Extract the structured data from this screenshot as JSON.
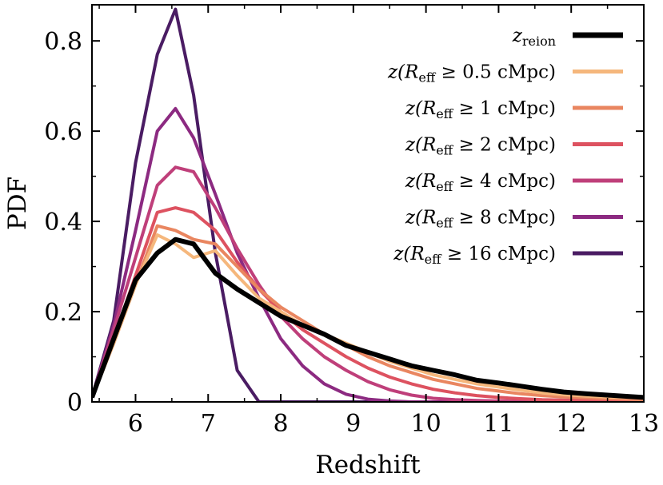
{
  "chart_data": {
    "type": "line",
    "xlabel": "Redshift",
    "ylabel": "PDF",
    "xlim": [
      5.4,
      13
    ],
    "ylim": [
      0,
      0.88
    ],
    "x_ticks": [
      6,
      7,
      8,
      9,
      10,
      11,
      12,
      13
    ],
    "x_tick_labels": [
      "6",
      "7",
      "8",
      "9",
      "10",
      "11",
      "12",
      "13"
    ],
    "y_ticks": [
      0,
      0.2,
      0.4,
      0.6,
      0.8
    ],
    "y_tick_labels": [
      "0",
      "0.2",
      "0.4",
      "0.6",
      "0.8"
    ],
    "grid": false,
    "legend_position": "top-right",
    "series": [
      {
        "name": "z_reion",
        "legend": {
          "pre": "z",
          "sub": "reion",
          "post": ""
        },
        "color": "#000000",
        "width": 6,
        "x": [
          5.4,
          5.7,
          6.0,
          6.3,
          6.55,
          6.8,
          7.1,
          7.4,
          7.7,
          8.0,
          8.3,
          8.6,
          8.9,
          9.2,
          9.5,
          9.8,
          10.1,
          10.4,
          10.7,
          11.0,
          11.3,
          11.6,
          11.9,
          12.2,
          12.5,
          12.8,
          13.0
        ],
        "y": [
          0.01,
          0.14,
          0.27,
          0.33,
          0.36,
          0.35,
          0.285,
          0.25,
          0.22,
          0.19,
          0.17,
          0.15,
          0.125,
          0.11,
          0.095,
          0.08,
          0.07,
          0.06,
          0.048,
          0.042,
          0.035,
          0.028,
          0.022,
          0.018,
          0.015,
          0.012,
          0.01
        ]
      },
      {
        "name": "z(R_eff ≥ 0.5 cMpc)",
        "legend": {
          "pre": "z(R",
          "sub": "eff",
          "post": " ≥ 0.5 cMpc)"
        },
        "color": "#f5b77c",
        "width": 4,
        "x": [
          5.4,
          5.7,
          6.0,
          6.3,
          6.55,
          6.8,
          7.1,
          7.4,
          7.7,
          8.0,
          8.3,
          8.6,
          8.9,
          9.2,
          9.5,
          9.8,
          10.1,
          10.4,
          10.7,
          11.0,
          11.3,
          11.6,
          11.9,
          12.2,
          12.5,
          12.8,
          13.0
        ],
        "y": [
          0.01,
          0.13,
          0.26,
          0.37,
          0.35,
          0.32,
          0.335,
          0.28,
          0.23,
          0.2,
          0.17,
          0.15,
          0.13,
          0.11,
          0.09,
          0.075,
          0.06,
          0.05,
          0.04,
          0.033,
          0.026,
          0.02,
          0.016,
          0.013,
          0.011,
          0.01,
          0.009
        ]
      },
      {
        "name": "z(R_eff ≥ 1 cMpc)",
        "legend": {
          "pre": "z(R",
          "sub": "eff",
          "post": " ≥ 1 cMpc)"
        },
        "color": "#e98660",
        "width": 4,
        "x": [
          5.4,
          5.7,
          6.0,
          6.3,
          6.55,
          6.8,
          7.1,
          7.4,
          7.7,
          8.0,
          8.3,
          8.6,
          8.9,
          9.2,
          9.5,
          9.8,
          10.1,
          10.4,
          10.7,
          11.0,
          11.3,
          11.6,
          11.9,
          12.2,
          12.5,
          12.8,
          13.0
        ],
        "y": [
          0.01,
          0.13,
          0.26,
          0.39,
          0.38,
          0.36,
          0.35,
          0.3,
          0.25,
          0.21,
          0.18,
          0.15,
          0.125,
          0.1,
          0.08,
          0.065,
          0.05,
          0.04,
          0.03,
          0.024,
          0.018,
          0.014,
          0.011,
          0.009,
          0.007,
          0.006,
          0.005
        ]
      },
      {
        "name": "z(R_eff ≥ 2 cMpc)",
        "legend": {
          "pre": "z(R",
          "sub": "eff",
          "post": " ≥ 2 cMpc)"
        },
        "color": "#dd5260",
        "width": 4,
        "x": [
          5.4,
          5.7,
          6.0,
          6.3,
          6.55,
          6.8,
          7.1,
          7.4,
          7.7,
          8.0,
          8.3,
          8.6,
          8.9,
          9.2,
          9.5,
          9.8,
          10.1,
          10.4,
          10.7,
          11.0,
          11.3,
          11.6,
          11.9,
          12.2,
          12.5,
          12.8,
          13.0
        ],
        "y": [
          0.01,
          0.14,
          0.28,
          0.42,
          0.43,
          0.42,
          0.38,
          0.31,
          0.25,
          0.2,
          0.16,
          0.13,
          0.1,
          0.075,
          0.055,
          0.04,
          0.028,
          0.02,
          0.014,
          0.01,
          0.007,
          0.005,
          0.004,
          0.003,
          0.002,
          0.002,
          0.002
        ]
      },
      {
        "name": "z(R_eff ≥ 4 cMpc)",
        "legend": {
          "pre": "z(R",
          "sub": "eff",
          "post": " ≥ 4 cMpc)"
        },
        "color": "#bf3f7a",
        "width": 4,
        "x": [
          5.4,
          5.7,
          6.0,
          6.3,
          6.55,
          6.8,
          7.1,
          7.4,
          7.7,
          8.0,
          8.3,
          8.6,
          8.9,
          9.2,
          9.5,
          9.8,
          10.1,
          10.4,
          10.7,
          11.0,
          11.3,
          11.6,
          11.9,
          12.2,
          12.5,
          12.8,
          13.0
        ],
        "y": [
          0.01,
          0.16,
          0.32,
          0.48,
          0.52,
          0.51,
          0.43,
          0.34,
          0.26,
          0.19,
          0.14,
          0.1,
          0.07,
          0.045,
          0.027,
          0.015,
          0.008,
          0.005,
          0.003,
          0.002,
          0.001,
          0.001,
          0.0,
          0.0,
          0.0,
          0.0,
          0.0
        ]
      },
      {
        "name": "z(R_eff ≥ 8 cMpc)",
        "legend": {
          "pre": "z(R",
          "sub": "eff",
          "post": " ≥ 8 cMpc)"
        },
        "color": "#8c2a81",
        "width": 4,
        "x": [
          5.4,
          5.7,
          6.0,
          6.3,
          6.55,
          6.8,
          7.1,
          7.4,
          7.7,
          8.0,
          8.3,
          8.6,
          8.9,
          9.2,
          9.5,
          9.8,
          10.1,
          10.4,
          10.7,
          11.0,
          11.3,
          11.6,
          11.9,
          12.2,
          12.5,
          12.8,
          13.0
        ],
        "y": [
          0.01,
          0.17,
          0.38,
          0.6,
          0.65,
          0.585,
          0.46,
          0.33,
          0.23,
          0.14,
          0.08,
          0.04,
          0.017,
          0.006,
          0.002,
          0.0,
          0.0,
          0.0,
          0.0,
          0.0,
          0.0,
          0.0,
          0.0,
          0.0,
          0.0,
          0.0,
          0.0
        ]
      },
      {
        "name": "z(R_eff ≥ 16 cMpc)",
        "legend": {
          "pre": "z(R",
          "sub": "eff",
          "post": " ≥ 16 cMpc)"
        },
        "color": "#4a1c63",
        "width": 4,
        "x": [
          5.4,
          5.7,
          6.0,
          6.3,
          6.55,
          6.8,
          7.1,
          7.4,
          7.7,
          8.0,
          8.3,
          8.6,
          8.9,
          9.2,
          9.5,
          9.8,
          10.1,
          10.4,
          10.7,
          11.0,
          11.3,
          11.6,
          11.9,
          12.2,
          12.5,
          12.8,
          13.0
        ],
        "y": [
          0.01,
          0.18,
          0.53,
          0.77,
          0.87,
          0.68,
          0.33,
          0.07,
          0.0,
          0.0,
          0.0,
          0.0,
          0.0,
          0.0,
          0.0,
          0.0,
          0.0,
          0.0,
          0.0,
          0.0,
          0.0,
          0.0,
          0.0,
          0.0,
          0.0,
          0.0,
          0.0
        ]
      }
    ]
  }
}
